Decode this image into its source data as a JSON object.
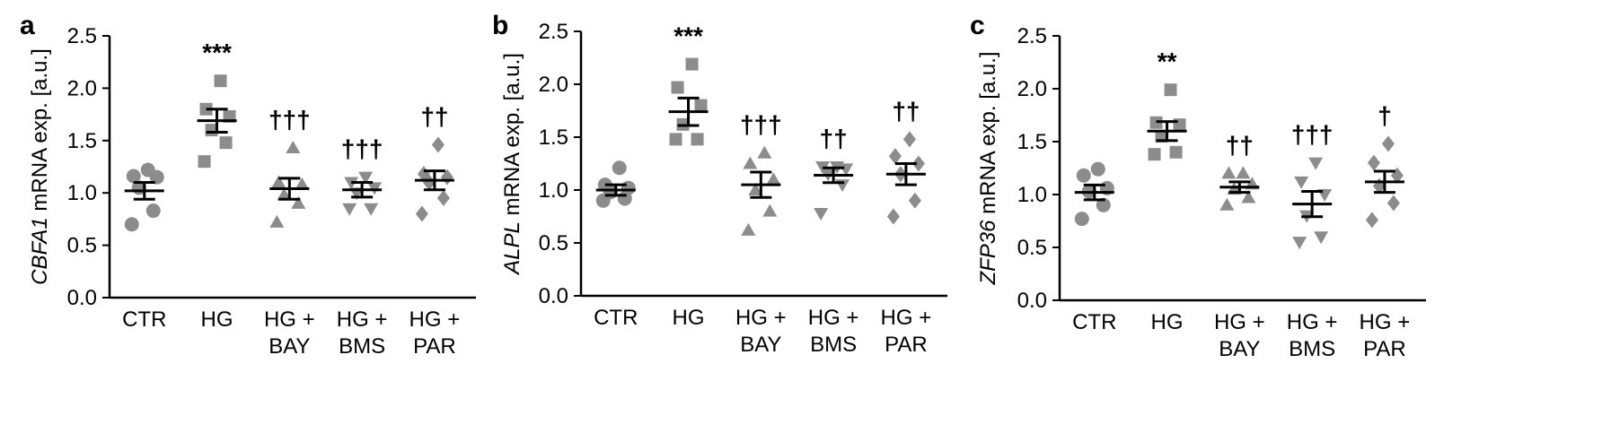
{
  "chart_data": [
    {
      "type": "scatter",
      "panel": "a",
      "ylabel_gene": "CBFA1",
      "ylabel_rest": " mRNA exp. [a.u.]",
      "ylim": [
        0,
        2.5
      ],
      "yticks": [
        "0.0",
        "0.5",
        "1.0",
        "1.5",
        "2.0",
        "2.5"
      ],
      "categories": [
        [
          "CTR"
        ],
        [
          "HG"
        ],
        [
          "HG +",
          "BAY"
        ],
        [
          "HG +",
          "BMS"
        ],
        [
          "HG +",
          "PAR"
        ]
      ],
      "groups": [
        {
          "marker": "circle",
          "points": [
            0.7,
            0.83,
            1.05,
            1.15,
            1.16,
            1.22
          ],
          "mean": 1.02,
          "sem": 0.08,
          "sig": ""
        },
        {
          "marker": "square",
          "points": [
            1.3,
            1.48,
            1.6,
            1.73,
            1.8,
            2.07
          ],
          "mean": 1.69,
          "sem": 0.11,
          "sig": "***"
        },
        {
          "marker": "triangle",
          "points": [
            0.72,
            0.9,
            0.98,
            1.08,
            1.1,
            1.43
          ],
          "mean": 1.04,
          "sem": 0.1,
          "sig": "†††"
        },
        {
          "marker": "invtri",
          "points": [
            0.85,
            0.85,
            1.0,
            1.05,
            1.1,
            1.15
          ],
          "mean": 1.03,
          "sem": 0.07,
          "sig": "†††"
        },
        {
          "marker": "diamond",
          "points": [
            0.8,
            0.95,
            1.1,
            1.15,
            1.18,
            1.46
          ],
          "mean": 1.12,
          "sem": 0.09,
          "sig": "††"
        }
      ]
    },
    {
      "type": "scatter",
      "panel": "b",
      "ylabel_gene": "ALPL",
      "ylabel_rest": " mRNA exp. [a.u.]",
      "ylim": [
        0,
        2.5
      ],
      "yticks": [
        "0.0",
        "0.5",
        "1.0",
        "1.5",
        "2.0",
        "2.5"
      ],
      "categories": [
        [
          "CTR"
        ],
        [
          "HG"
        ],
        [
          "HG +",
          "BAY"
        ],
        [
          "HG +",
          "BMS"
        ],
        [
          "HG +",
          "PAR"
        ]
      ],
      "groups": [
        {
          "marker": "circle",
          "points": [
            0.9,
            0.92,
            0.98,
            1.02,
            1.05,
            1.21
          ],
          "mean": 1.0,
          "sem": 0.05,
          "sig": ""
        },
        {
          "marker": "square",
          "points": [
            1.48,
            1.48,
            1.62,
            1.8,
            1.97,
            2.19
          ],
          "mean": 1.74,
          "sem": 0.13,
          "sig": "***"
        },
        {
          "marker": "triangle",
          "points": [
            0.62,
            0.8,
            1.0,
            1.1,
            1.25,
            1.35
          ],
          "mean": 1.05,
          "sem": 0.12,
          "sig": "†††"
        },
        {
          "marker": "invtri",
          "points": [
            0.78,
            1.05,
            1.15,
            1.2,
            1.22,
            1.22
          ],
          "mean": 1.14,
          "sem": 0.07,
          "sig": "††"
        },
        {
          "marker": "diamond",
          "points": [
            0.75,
            0.9,
            1.15,
            1.25,
            1.32,
            1.48
          ],
          "mean": 1.15,
          "sem": 0.1,
          "sig": "††"
        }
      ]
    },
    {
      "type": "scatter",
      "panel": "c",
      "ylabel_gene": "ZFP36",
      "ylabel_rest": " mRNA exp. [a.u.]",
      "ylim": [
        0,
        2.5
      ],
      "yticks": [
        "0.0",
        "0.5",
        "1.0",
        "1.5",
        "2.0",
        "2.5"
      ],
      "categories": [
        [
          "CTR"
        ],
        [
          "HG"
        ],
        [
          "HG +",
          "BAY"
        ],
        [
          "HG +",
          "BMS"
        ],
        [
          "HG +",
          "PAR"
        ]
      ],
      "groups": [
        {
          "marker": "circle",
          "points": [
            0.77,
            0.9,
            1.03,
            1.06,
            1.18,
            1.24
          ],
          "mean": 1.02,
          "sem": 0.07,
          "sig": ""
        },
        {
          "marker": "square",
          "points": [
            1.38,
            1.4,
            1.55,
            1.66,
            1.68,
            1.99
          ],
          "mean": 1.6,
          "sem": 0.09,
          "sig": "**"
        },
        {
          "marker": "triangle",
          "points": [
            0.9,
            0.97,
            1.05,
            1.1,
            1.2,
            1.2
          ],
          "mean": 1.07,
          "sem": 0.05,
          "sig": "††"
        },
        {
          "marker": "invtri",
          "points": [
            0.55,
            0.6,
            0.8,
            1.0,
            1.12,
            1.3
          ],
          "mean": 0.91,
          "sem": 0.12,
          "sig": "†††"
        },
        {
          "marker": "diamond",
          "points": [
            0.76,
            0.92,
            1.08,
            1.18,
            1.3,
            1.48
          ],
          "mean": 1.12,
          "sem": 0.1,
          "sig": "†"
        }
      ]
    }
  ]
}
